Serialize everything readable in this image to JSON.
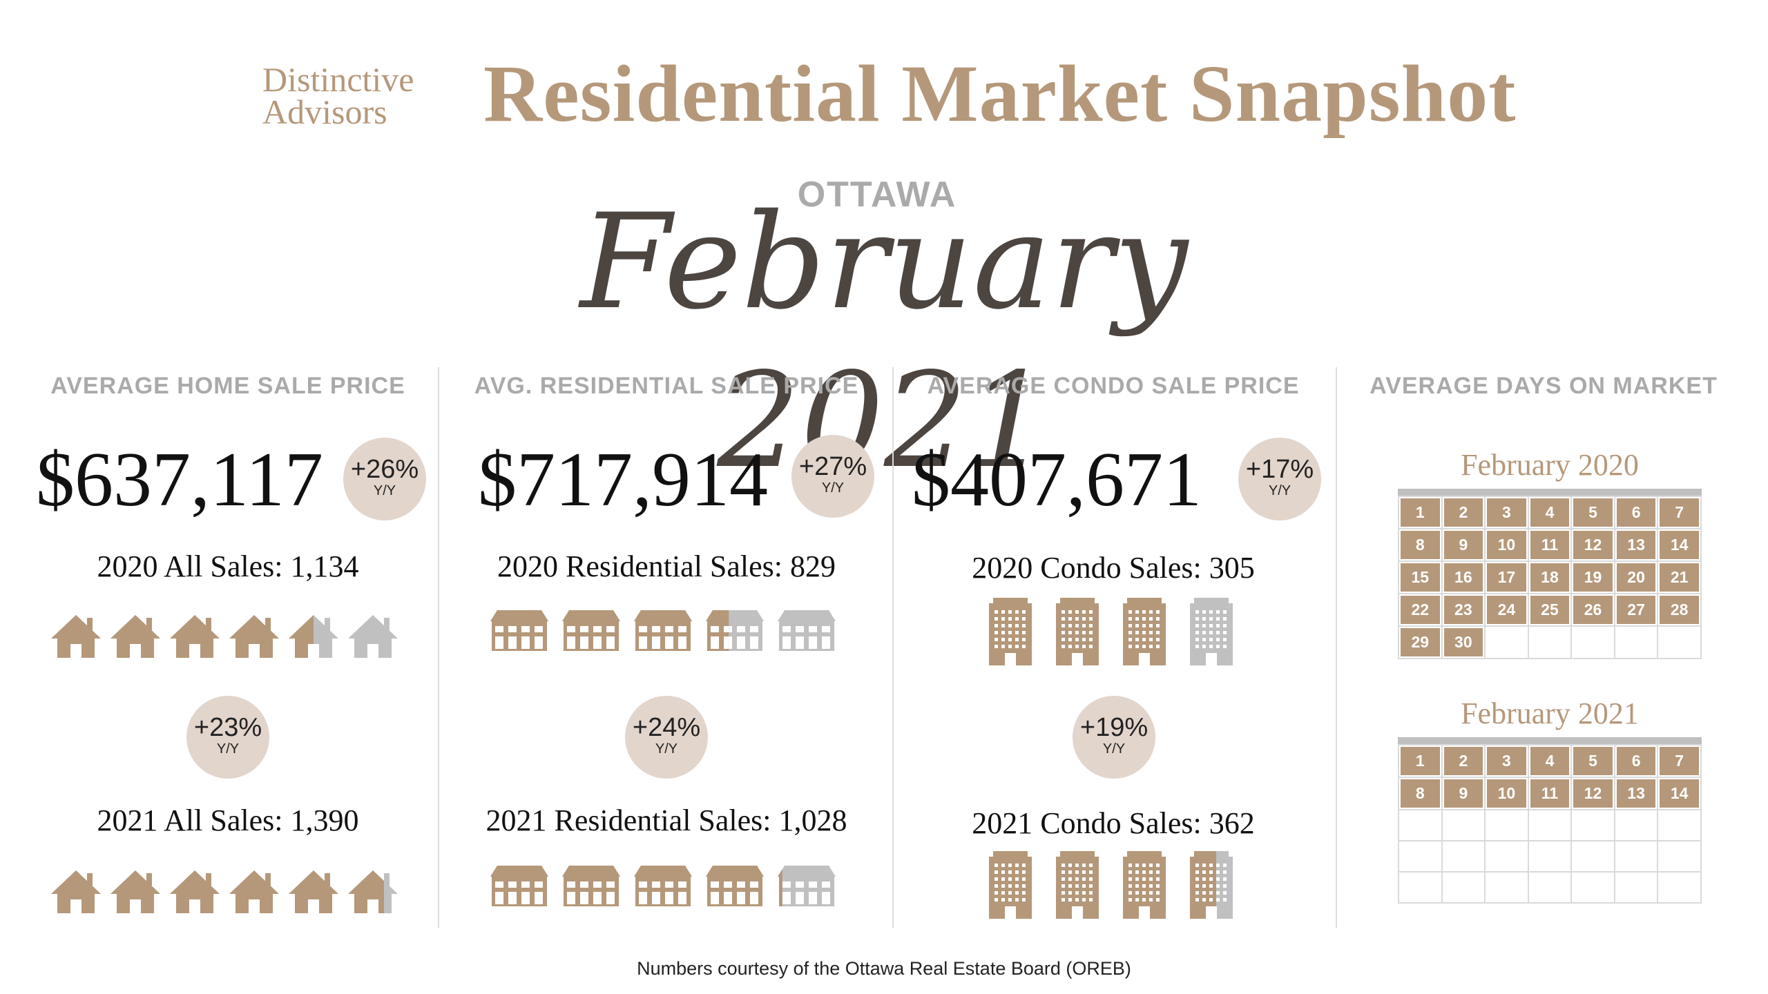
{
  "header": {
    "brand_line1": "Distinctive",
    "brand_line2": "Advisors",
    "title": "Residential Market Snapshot",
    "city": "OTTAWA",
    "month": "February 2021"
  },
  "colors": {
    "accent": "#b5987a",
    "grey_icon": "#c0c0c0",
    "badge_bg": "#e2d5cc",
    "month_text": "#4d4540"
  },
  "columns": [
    {
      "heading": "AVERAGE HOME SALE PRICE",
      "price": "$637,117",
      "price_change": {
        "pct": "+26%",
        "label": "Y/Y"
      },
      "sales_2020": "2020 All Sales: 1,134",
      "sales_change": {
        "pct": "+23%",
        "label": "Y/Y"
      },
      "sales_2021": "2021 All Sales: 1,390",
      "icon": "house-icon",
      "icons_2020_filled": 4.5,
      "icons_2021_filled": 5.7
    },
    {
      "heading": "AVG. RESIDENTIAL SALE PRICE",
      "price": "$717,914",
      "price_change": {
        "pct": "+27%",
        "label": "Y/Y"
      },
      "sales_2020": "2020 Residential Sales: 829",
      "sales_change": {
        "pct": "+24%",
        "label": "Y/Y"
      },
      "sales_2021": "2021 Residential Sales: 1,028",
      "icon": "townhouse-icon",
      "icons_2020_filled": 3.4,
      "icons_2021_filled": 4.1
    },
    {
      "heading": "AVERAGE CONDO SALE PRICE",
      "price": "$407,671",
      "price_change": {
        "pct": "+17%",
        "label": "Y/Y"
      },
      "sales_2020": "2020 Condo Sales: 305",
      "sales_change": {
        "pct": "+19%",
        "label": "Y/Y"
      },
      "sales_2021": "2021 Condo Sales: 362",
      "icon": "condo-building-icon",
      "icons_2020_filled": 3.0,
      "icons_2021_filled": 3.6
    }
  ],
  "days_on_market": {
    "heading": "AVERAGE DAYS ON MARKET",
    "calendars": [
      {
        "title": "February 2020",
        "days_filled": 30,
        "rows": 5
      },
      {
        "title": "February 2021",
        "days_filled": 14,
        "rows": 5
      }
    ]
  },
  "footer": "Numbers courtesy of the Ottawa Real Estate Board (OREB)"
}
